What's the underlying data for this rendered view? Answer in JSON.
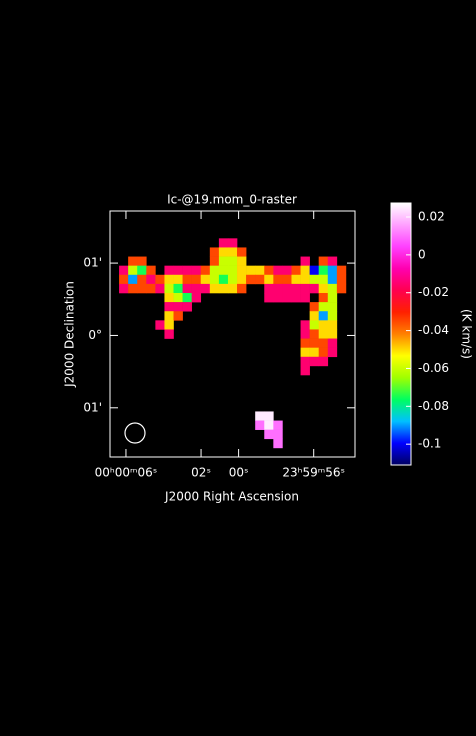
{
  "chart_data": {
    "type": "heatmap",
    "title": "Ic-@19.mom_0-raster",
    "x_label": "J2000 Right Ascension",
    "y_label": "J2000 Declination",
    "colorbar_label": "(K km/s)",
    "xlim": [
      6.85,
      -6.2
    ],
    "ylim": [
      1.72,
      -1.68
    ],
    "xticks": [
      {
        "value": 6,
        "label": "00ʰ00ᵐ06ˢ"
      },
      {
        "value": 2,
        "label": "02ˢ"
      },
      {
        "value": 0,
        "label": "00ˢ"
      },
      {
        "value": -4,
        "label": "23ʰ59ᵐ56ˢ"
      }
    ],
    "yticks": [
      {
        "value": 1,
        "label": "01'"
      },
      {
        "value": 0,
        "label": "0°"
      },
      {
        "value": -1,
        "label": "01'"
      }
    ],
    "clim": [
      -0.111,
      0.0274
    ],
    "cticks": [
      -0.1,
      -0.08,
      -0.06,
      -0.04,
      -0.02,
      0,
      0.02
    ],
    "colorscale": [
      "#000060",
      "#0000ff",
      "#00c0ff",
      "#00ff60",
      "#a0ff00",
      "#ffff00",
      "#ff8000",
      "#ff2000",
      "#ff0050",
      "#ff00b0",
      "#ff40ff",
      "#ffa0ff",
      "#ffffff"
    ],
    "values": [
      [
        null,
        null,
        null,
        null,
        null,
        null,
        null,
        null,
        null,
        null,
        null,
        null,
        null,
        null,
        null,
        null,
        null,
        null,
        null,
        null,
        null,
        null,
        null,
        null,
        null,
        null,
        null
      ],
      [
        null,
        null,
        null,
        null,
        null,
        null,
        null,
        null,
        null,
        null,
        null,
        null,
        null,
        null,
        null,
        null,
        null,
        null,
        null,
        null,
        null,
        null,
        null,
        null,
        null,
        null,
        null
      ],
      [
        null,
        null,
        null,
        null,
        null,
        null,
        null,
        null,
        null,
        null,
        null,
        null,
        null,
        null,
        null,
        null,
        null,
        null,
        null,
        null,
        null,
        null,
        null,
        null,
        null,
        null,
        null
      ],
      [
        null,
        null,
        null,
        null,
        null,
        null,
        null,
        null,
        null,
        null,
        null,
        null,
        -0.015,
        -0.015,
        null,
        null,
        null,
        null,
        null,
        null,
        null,
        null,
        null,
        null,
        null,
        null,
        null
      ],
      [
        null,
        null,
        null,
        null,
        null,
        null,
        null,
        null,
        null,
        null,
        null,
        -0.035,
        -0.05,
        -0.05,
        -0.035,
        null,
        null,
        null,
        null,
        null,
        null,
        null,
        null,
        null,
        null,
        null,
        null
      ],
      [
        null,
        null,
        -0.035,
        -0.035,
        null,
        null,
        null,
        null,
        null,
        null,
        null,
        -0.035,
        -0.06,
        -0.06,
        -0.05,
        null,
        null,
        null,
        null,
        null,
        null,
        -0.015,
        null,
        -0.035,
        -0.015,
        null,
        null
      ],
      [
        null,
        -0.015,
        -0.06,
        -0.075,
        -0.035,
        null,
        -0.015,
        -0.015,
        -0.015,
        -0.015,
        -0.035,
        -0.06,
        -0.06,
        -0.06,
        -0.05,
        -0.05,
        -0.05,
        -0.035,
        -0.015,
        -0.015,
        -0.035,
        -0.05,
        -0.1,
        -0.075,
        -0.09,
        -0.035,
        null
      ],
      [
        null,
        -0.035,
        -0.09,
        -0.035,
        -0.015,
        -0.035,
        -0.05,
        -0.05,
        -0.035,
        -0.035,
        -0.05,
        -0.06,
        -0.075,
        -0.06,
        -0.05,
        -0.035,
        -0.035,
        -0.05,
        -0.035,
        -0.035,
        -0.05,
        -0.05,
        -0.06,
        -0.06,
        -0.09,
        -0.035,
        null
      ],
      [
        null,
        -0.015,
        -0.035,
        -0.035,
        -0.035,
        -0.015,
        -0.06,
        -0.075,
        -0.015,
        -0.015,
        -0.015,
        -0.05,
        -0.05,
        -0.05,
        -0.035,
        null,
        null,
        -0.015,
        -0.015,
        -0.015,
        -0.015,
        -0.015,
        -0.015,
        -0.05,
        -0.06,
        -0.035,
        null
      ],
      [
        null,
        null,
        null,
        null,
        null,
        null,
        -0.05,
        -0.06,
        -0.075,
        -0.015,
        null,
        null,
        null,
        null,
        null,
        null,
        null,
        -0.015,
        -0.015,
        -0.015,
        -0.015,
        -0.015,
        null,
        -0.035,
        -0.06,
        null,
        null
      ],
      [
        null,
        null,
        null,
        null,
        null,
        null,
        -0.015,
        -0.015,
        -0.015,
        null,
        null,
        null,
        null,
        null,
        null,
        null,
        null,
        null,
        null,
        null,
        null,
        null,
        -0.035,
        -0.06,
        -0.06,
        null,
        null
      ],
      [
        null,
        null,
        null,
        null,
        null,
        null,
        -0.05,
        -0.035,
        null,
        null,
        null,
        null,
        null,
        null,
        null,
        null,
        null,
        null,
        null,
        null,
        null,
        null,
        -0.05,
        -0.09,
        -0.06,
        null,
        null
      ],
      [
        null,
        null,
        null,
        null,
        null,
        -0.015,
        -0.05,
        null,
        null,
        null,
        null,
        null,
        null,
        null,
        null,
        null,
        null,
        null,
        null,
        null,
        null,
        -0.015,
        -0.06,
        -0.05,
        -0.05,
        null,
        null
      ],
      [
        null,
        null,
        null,
        null,
        null,
        null,
        -0.015,
        null,
        null,
        null,
        null,
        null,
        null,
        null,
        null,
        null,
        null,
        null,
        null,
        null,
        null,
        -0.015,
        -0.035,
        -0.05,
        -0.05,
        null,
        null
      ],
      [
        null,
        null,
        null,
        null,
        null,
        null,
        null,
        null,
        null,
        null,
        null,
        null,
        null,
        null,
        null,
        null,
        null,
        null,
        null,
        null,
        null,
        -0.035,
        -0.035,
        -0.035,
        -0.015,
        null,
        null
      ],
      [
        null,
        null,
        null,
        null,
        null,
        null,
        null,
        null,
        null,
        null,
        null,
        null,
        null,
        null,
        null,
        null,
        null,
        null,
        null,
        null,
        null,
        -0.05,
        -0.05,
        -0.035,
        -0.015,
        null,
        null
      ],
      [
        null,
        null,
        null,
        null,
        null,
        null,
        null,
        null,
        null,
        null,
        null,
        null,
        null,
        null,
        null,
        null,
        null,
        null,
        null,
        null,
        null,
        -0.015,
        -0.015,
        -0.015,
        null,
        null,
        null
      ],
      [
        null,
        null,
        null,
        null,
        null,
        null,
        null,
        null,
        null,
        null,
        null,
        null,
        null,
        null,
        null,
        null,
        null,
        null,
        null,
        null,
        null,
        -0.015,
        null,
        null,
        null,
        null,
        null
      ],
      [
        null,
        null,
        null,
        null,
        null,
        null,
        null,
        null,
        null,
        null,
        null,
        null,
        null,
        null,
        null,
        null,
        null,
        null,
        null,
        null,
        null,
        null,
        null,
        null,
        null,
        null,
        null
      ],
      [
        null,
        null,
        null,
        null,
        null,
        null,
        null,
        null,
        null,
        null,
        null,
        null,
        null,
        null,
        null,
        null,
        null,
        null,
        null,
        null,
        null,
        null,
        null,
        null,
        null,
        null,
        null
      ],
      [
        null,
        null,
        null,
        null,
        null,
        null,
        null,
        null,
        null,
        null,
        null,
        null,
        null,
        null,
        null,
        null,
        null,
        null,
        null,
        null,
        null,
        null,
        null,
        null,
        null,
        null,
        null
      ],
      [
        null,
        null,
        null,
        null,
        null,
        null,
        null,
        null,
        null,
        null,
        null,
        null,
        null,
        null,
        null,
        null,
        null,
        null,
        null,
        null,
        null,
        null,
        null,
        null,
        null,
        null,
        null
      ],
      [
        null,
        null,
        null,
        null,
        null,
        null,
        null,
        null,
        null,
        null,
        null,
        null,
        null,
        null,
        null,
        null,
        0.025,
        0.025,
        null,
        null,
        null,
        null,
        null,
        null,
        null,
        null,
        null
      ],
      [
        null,
        null,
        null,
        null,
        null,
        null,
        null,
        null,
        null,
        null,
        null,
        null,
        null,
        null,
        null,
        null,
        0.01,
        0.025,
        0.01,
        null,
        null,
        null,
        null,
        null,
        null,
        null,
        null
      ],
      [
        null,
        null,
        null,
        null,
        null,
        null,
        null,
        null,
        null,
        null,
        null,
        null,
        null,
        null,
        null,
        null,
        null,
        0.01,
        0.01,
        null,
        null,
        null,
        null,
        null,
        null,
        null,
        null
      ],
      [
        null,
        null,
        null,
        null,
        null,
        null,
        null,
        null,
        null,
        null,
        null,
        null,
        null,
        null,
        null,
        null,
        null,
        null,
        0.01,
        null,
        null,
        null,
        null,
        null,
        null,
        null,
        null
      ],
      [
        null,
        null,
        null,
        null,
        null,
        null,
        null,
        null,
        null,
        null,
        null,
        null,
        null,
        null,
        null,
        null,
        null,
        null,
        null,
        null,
        null,
        null,
        null,
        null,
        null,
        null,
        null
      ]
    ]
  }
}
